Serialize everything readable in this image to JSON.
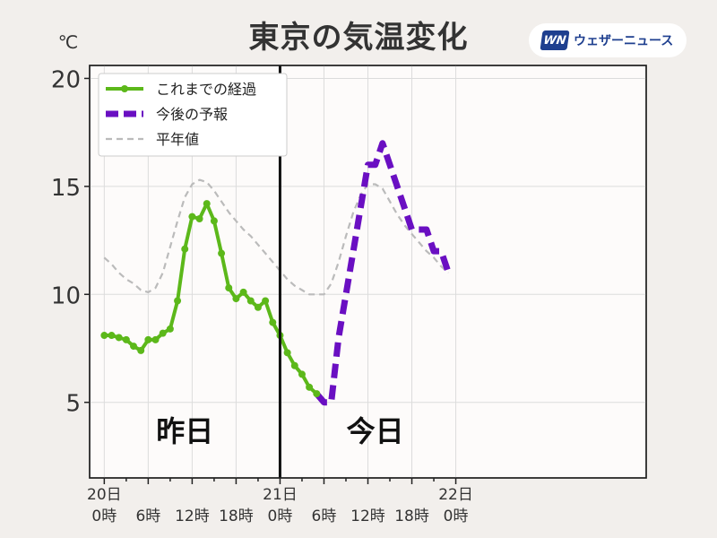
{
  "header": {
    "title": "東京の気温変化",
    "brand_mark": "WN",
    "brand_name": "ウェザーニュース"
  },
  "chart_data": {
    "type": "line",
    "title": "東京の気温変化",
    "ylabel": "℃",
    "xlabel": "",
    "ylim": [
      1.5,
      20.6
    ],
    "xlim": [
      -2,
      74
    ],
    "yticks": [
      5,
      10,
      15,
      20
    ],
    "grid": true,
    "legend_position": "top-left",
    "x_unit": "hours from 20日 0時",
    "x_ticks": [
      {
        "x": 0,
        "label": [
          "20日",
          "0時"
        ]
      },
      {
        "x": 6,
        "label": [
          "",
          "6時"
        ]
      },
      {
        "x": 12,
        "label": [
          "",
          "12時"
        ]
      },
      {
        "x": 18,
        "label": [
          "",
          "18時"
        ]
      },
      {
        "x": 24,
        "label": [
          "21日",
          "0時"
        ]
      },
      {
        "x": 30,
        "label": [
          "",
          "6時"
        ]
      },
      {
        "x": 36,
        "label": [
          "",
          "12時"
        ]
      },
      {
        "x": 42,
        "label": [
          "",
          "18時"
        ]
      },
      {
        "x": 48,
        "label": [
          "22日",
          "0時"
        ]
      }
    ],
    "divider_x": 24,
    "day_labels": [
      {
        "text": "昨日",
        "x": 11,
        "y": 3.2
      },
      {
        "text": "今日",
        "x": 37,
        "y": 3.2
      }
    ],
    "series": [
      {
        "name": "これまでの経過",
        "color": "#5cb81a",
        "style": "solid-markers",
        "points": [
          [
            0,
            8.1
          ],
          [
            1,
            8.1
          ],
          [
            2,
            8.0
          ],
          [
            3,
            7.9
          ],
          [
            4,
            7.6
          ],
          [
            5,
            7.4
          ],
          [
            6,
            7.9
          ],
          [
            7,
            7.9
          ],
          [
            8,
            8.2
          ],
          [
            9,
            8.4
          ],
          [
            10,
            9.7
          ],
          [
            11,
            12.1
          ],
          [
            12,
            13.6
          ],
          [
            13,
            13.5
          ],
          [
            14,
            14.2
          ],
          [
            15,
            13.4
          ],
          [
            16,
            11.9
          ],
          [
            17,
            10.3
          ],
          [
            18,
            9.8
          ],
          [
            19,
            10.1
          ],
          [
            20,
            9.7
          ],
          [
            21,
            9.4
          ],
          [
            22,
            9.7
          ],
          [
            23,
            8.7
          ],
          [
            24,
            8.1
          ],
          [
            25,
            7.3
          ],
          [
            26,
            6.7
          ],
          [
            27,
            6.3
          ],
          [
            28,
            5.7
          ],
          [
            29,
            5.4
          ]
        ]
      },
      {
        "name": "今後の予報",
        "color": "#6a0fc2",
        "style": "dashed",
        "points": [
          [
            29,
            5.4
          ],
          [
            30,
            5.0
          ],
          [
            31,
            5.0
          ],
          [
            32,
            8.0
          ],
          [
            33,
            10.0
          ],
          [
            34,
            12.0
          ],
          [
            35,
            14.0
          ],
          [
            36,
            16.0
          ],
          [
            37,
            16.0
          ],
          [
            38,
            17.0
          ],
          [
            39,
            16.0
          ],
          [
            40,
            15.0
          ],
          [
            41,
            14.0
          ],
          [
            42,
            13.0
          ],
          [
            43,
            13.0
          ],
          [
            44,
            13.0
          ],
          [
            45,
            12.0
          ],
          [
            46,
            12.0
          ],
          [
            47,
            11.0
          ]
        ]
      },
      {
        "name": "平年値",
        "color": "#bbbbbb",
        "style": "dashed-thin",
        "points": [
          [
            0,
            11.7
          ],
          [
            1,
            11.4
          ],
          [
            2,
            11.0
          ],
          [
            3,
            10.7
          ],
          [
            4,
            10.5
          ],
          [
            5,
            10.2
          ],
          [
            6,
            10.1
          ],
          [
            7,
            10.3
          ],
          [
            8,
            11.0
          ],
          [
            9,
            12.2
          ],
          [
            10,
            13.4
          ],
          [
            11,
            14.5
          ],
          [
            12,
            15.1
          ],
          [
            13,
            15.3
          ],
          [
            14,
            15.2
          ],
          [
            15,
            14.8
          ],
          [
            16,
            14.3
          ],
          [
            17,
            13.8
          ],
          [
            18,
            13.4
          ],
          [
            19,
            13.0
          ],
          [
            20,
            12.7
          ],
          [
            21,
            12.3
          ],
          [
            22,
            11.9
          ],
          [
            23,
            11.5
          ],
          [
            24,
            11.1
          ],
          [
            25,
            10.7
          ],
          [
            26,
            10.4
          ],
          [
            27,
            10.2
          ],
          [
            28,
            10.0
          ],
          [
            29,
            10.0
          ],
          [
            30,
            10.0
          ],
          [
            31,
            10.5
          ],
          [
            32,
            11.5
          ],
          [
            33,
            12.7
          ],
          [
            34,
            13.8
          ],
          [
            35,
            14.6
          ],
          [
            36,
            15.1
          ],
          [
            37,
            15.1
          ],
          [
            38,
            14.9
          ],
          [
            39,
            14.3
          ],
          [
            40,
            13.7
          ],
          [
            41,
            13.2
          ],
          [
            42,
            12.8
          ],
          [
            43,
            12.4
          ],
          [
            44,
            12.0
          ],
          [
            45,
            11.7
          ],
          [
            46,
            11.3
          ],
          [
            47,
            11.0
          ]
        ]
      }
    ]
  }
}
